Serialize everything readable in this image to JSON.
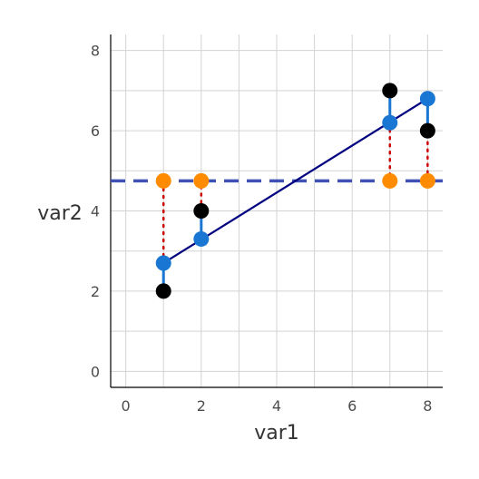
{
  "chart_data": {
    "type": "scatter",
    "title": "",
    "xlabel": "var1",
    "ylabel": "var2",
    "xlim": [
      -0.4,
      8.4
    ],
    "ylim": [
      -0.4,
      8.4
    ],
    "x_ticks": [
      0,
      2,
      4,
      6,
      8
    ],
    "y_ticks": [
      0,
      2,
      4,
      6,
      8
    ],
    "x_tick_labels": [
      "0",
      "2",
      "4",
      "6",
      "8"
    ],
    "y_tick_labels": [
      "0",
      "2",
      "4",
      "6",
      "8"
    ],
    "grid": true,
    "legend": "none",
    "mean_line": {
      "y": 4.75,
      "style": "dashed",
      "color": "#3f51b5"
    },
    "regression_line": {
      "x": [
        1,
        8
      ],
      "y": [
        2.7,
        6.8
      ],
      "color": "#000080"
    },
    "series": [
      {
        "role": "observed",
        "color": "#000000",
        "x": [
          1,
          2,
          7,
          8
        ],
        "y": [
          2,
          4,
          7,
          6
        ]
      },
      {
        "role": "fitted",
        "color": "#1976d2",
        "x": [
          1,
          2,
          7,
          8
        ],
        "y": [
          2.7,
          3.3,
          6.2,
          6.8
        ]
      },
      {
        "role": "mean",
        "color": "#ff8c00",
        "x": [
          1,
          2,
          7,
          8
        ],
        "y": [
          4.75,
          4.75,
          4.75,
          4.75
        ]
      }
    ],
    "residual_segments": {
      "color": "#1976d2",
      "from": "observed",
      "to": "fitted"
    },
    "deviation_segments": {
      "color": "#cc0000",
      "style": "dotted",
      "from": "fitted",
      "to": "mean"
    }
  }
}
